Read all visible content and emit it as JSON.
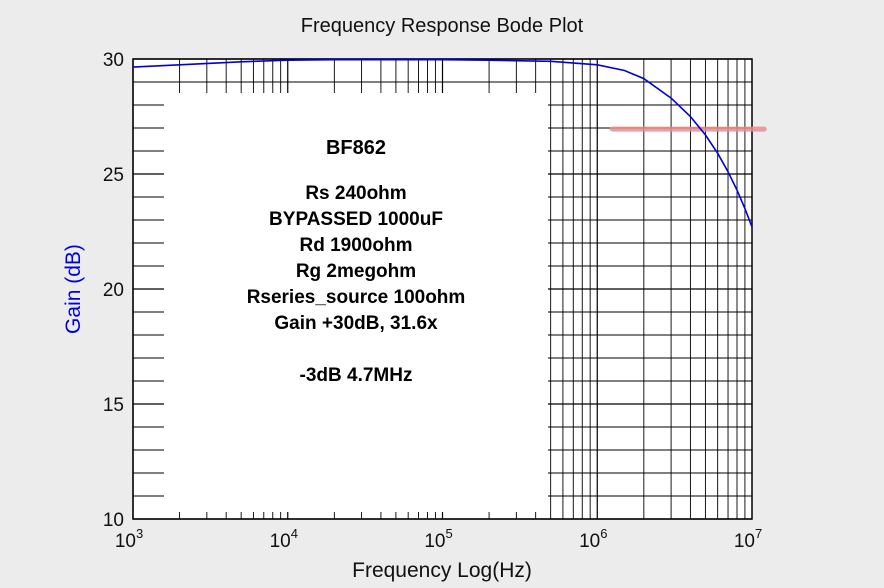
{
  "chart_data": {
    "type": "line",
    "title": "Frequency Response Bode Plot",
    "xlabel": "Frequency Log(Hz)",
    "ylabel": "Gain (dB)",
    "x_scale": "log",
    "xlim": [
      1000,
      10000000
    ],
    "ylim": [
      10,
      30
    ],
    "x_ticks": [
      {
        "base": "10",
        "exp": "3",
        "value": 1000
      },
      {
        "base": "10",
        "exp": "4",
        "value": 10000
      },
      {
        "base": "10",
        "exp": "5",
        "value": 100000
      },
      {
        "base": "10",
        "exp": "6",
        "value": 1000000
      },
      {
        "base": "10",
        "exp": "7",
        "value": 10000000
      }
    ],
    "y_ticks": [
      "30",
      "25",
      "20",
      "15",
      "10"
    ],
    "y_tick_values": [
      30,
      25,
      20,
      15,
      10
    ],
    "grid": true,
    "series": [
      {
        "color": "#0000dd",
        "x": [
          1000,
          2000,
          5000,
          10000,
          20000,
          50000,
          100000,
          200000,
          500000,
          1000000,
          1500000,
          2000000,
          3000000,
          4000000,
          5000000,
          6000000,
          7000000,
          8000000,
          9000000,
          10000000
        ],
        "y": [
          29.65,
          29.75,
          29.88,
          29.95,
          29.97,
          29.97,
          29.97,
          29.95,
          29.9,
          29.75,
          29.5,
          29.15,
          28.3,
          27.5,
          26.7,
          25.9,
          25.1,
          24.3,
          23.5,
          22.7
        ]
      }
    ],
    "marker_line": {
      "x_start": 1250000,
      "x_end": 12000000,
      "y": 26.95,
      "color": "#e89090"
    },
    "annotation": {
      "heading": "BF862",
      "lines": [
        "Rs 240ohm",
        "BYPASSED 1000uF",
        "Rd 1900ohm",
        "Rg 2megohm",
        "Rseries_source 100ohm",
        "Gain +30dB, 31.6x",
        "",
        "-3dB 4.7MHz"
      ]
    },
    "colors": {
      "axis": "#000000",
      "ylabel": "#0000dd",
      "background": "#ececec",
      "plot_bg": "#ffffff"
    }
  }
}
